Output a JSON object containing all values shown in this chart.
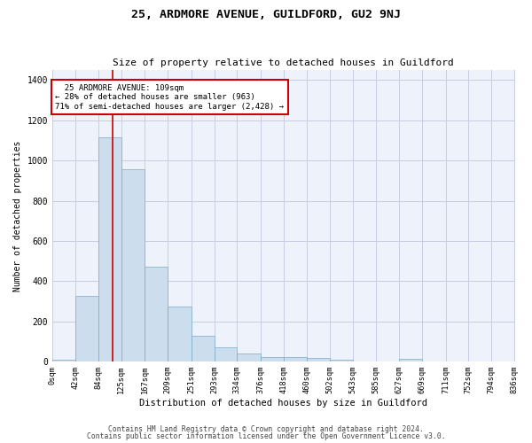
{
  "title1": "25, ARDMORE AVENUE, GUILDFORD, GU2 9NJ",
  "title2": "Size of property relative to detached houses in Guildford",
  "xlabel": "Distribution of detached houses by size in Guildford",
  "ylabel": "Number of detached properties",
  "footer1": "Contains HM Land Registry data © Crown copyright and database right 2024.",
  "footer2": "Contains public sector information licensed under the Open Government Licence v3.0.",
  "annotation_line1": "  25 ARDMORE AVENUE: 109sqm  ",
  "annotation_line2": "← 28% of detached houses are smaller (963)",
  "annotation_line3": "71% of semi-detached houses are larger (2,428) →",
  "bar_color": "#ccdded",
  "bar_edge_color": "#7aaac8",
  "vline_color": "#cc0000",
  "annotation_box_color": "#cc0000",
  "bg_color": "#eef2fb",
  "grid_color": "#c5cde0",
  "bin_edges": [
    0,
    42,
    84,
    125,
    167,
    209,
    251,
    293,
    334,
    376,
    418,
    460,
    502,
    543,
    585,
    627,
    669,
    711,
    752,
    794,
    836
  ],
  "bar_heights": [
    10,
    325,
    1115,
    955,
    470,
    275,
    130,
    70,
    40,
    22,
    22,
    18,
    10,
    0,
    0,
    12,
    0,
    0,
    0,
    0
  ],
  "ylim": [
    0,
    1450
  ],
  "yticks": [
    0,
    200,
    400,
    600,
    800,
    1000,
    1200,
    1400
  ],
  "vline_x": 109,
  "figsize": [
    6.0,
    5.0
  ],
  "dpi": 100
}
